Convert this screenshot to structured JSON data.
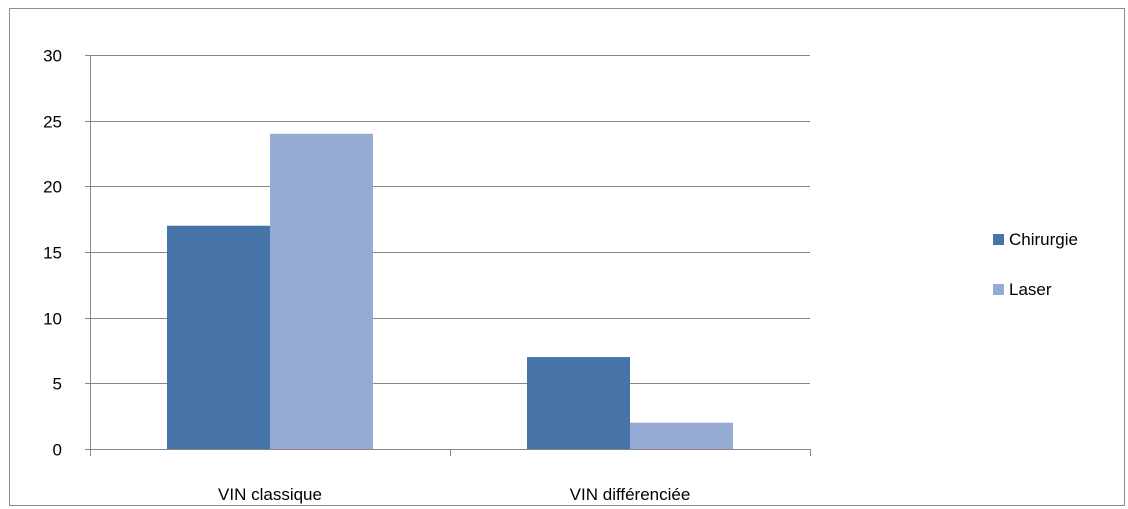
{
  "chart_data": {
    "type": "bar",
    "categories": [
      "VIN classique",
      "VIN différenciée"
    ],
    "series": [
      {
        "name": "Chirurgie",
        "values": [
          17,
          7
        ],
        "color": "#4674A8"
      },
      {
        "name": "Laser",
        "values": [
          24,
          2
        ],
        "color": "#95ABD4"
      }
    ],
    "ylim": [
      0,
      30
    ],
    "yticks": [
      0,
      5,
      10,
      15,
      20,
      25,
      30
    ],
    "grid": true,
    "legend_position": "right",
    "title": "",
    "xlabel": "",
    "ylabel": ""
  }
}
